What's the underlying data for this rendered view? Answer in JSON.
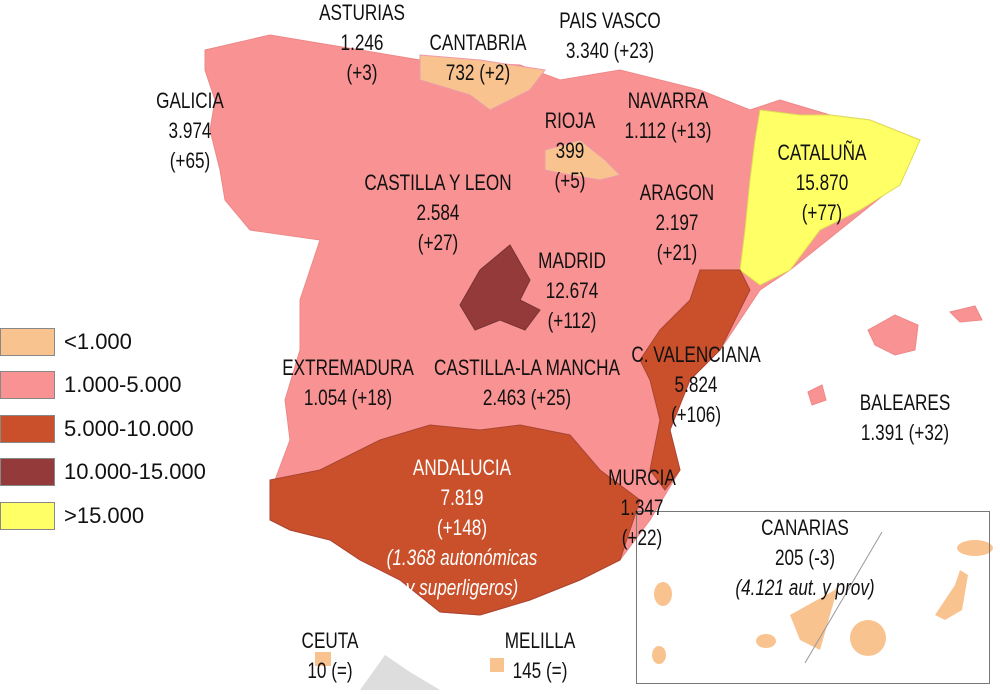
{
  "colors": {
    "lt1000": "#F9C38F",
    "r1000_5000": "#F99292",
    "r5000_10000": "#C9502A",
    "r10000_15000": "#953A3A",
    "gt15000": "#FFFF66"
  },
  "legend": [
    {
      "label": "<1.000",
      "color": "#F9C38F"
    },
    {
      "label": "1.000-5.000",
      "color": "#F99292"
    },
    {
      "label": "5.000-10.000",
      "color": "#C9502A"
    },
    {
      "label": "10.000-15.000",
      "color": "#953A3A"
    },
    {
      "label": ">15.000",
      "color": "#FFFF66"
    }
  ],
  "regions": {
    "asturias": {
      "name": "ASTURIAS",
      "value": "1.246",
      "change": "(+3)"
    },
    "cantabria": {
      "name": "CANTABRIA",
      "value": "732 (+2)"
    },
    "pais_vasco": {
      "name": "PAIS VASCO",
      "value": "3.340 (+23)"
    },
    "galicia": {
      "name": "GALICIA",
      "value": "3.974",
      "change": "(+65)"
    },
    "navarra": {
      "name": "NAVARRA",
      "value": "1.112 (+13)"
    },
    "rioja": {
      "name": "RIOJA",
      "value": "399",
      "change": "(+5)"
    },
    "cataluna": {
      "name": "CATALUÑA",
      "value": "15.870",
      "change": "(+77)"
    },
    "castilla_leon": {
      "name": "CASTILLA Y LEON",
      "value": "2.584",
      "change": "(+27)"
    },
    "aragon": {
      "name": "ARAGON",
      "value": "2.197",
      "change": "(+21)"
    },
    "madrid": {
      "name": "MADRID",
      "value": "12.674",
      "change": "(+112)"
    },
    "valencia": {
      "name": "C. VALENCIANA",
      "value": "5.824",
      "change": "(+106)"
    },
    "extremadura": {
      "name": "EXTREMADURA",
      "value": "1.054 (+18)"
    },
    "castilla_mancha": {
      "name": "CASTILLA-LA MANCHA",
      "value": "2.463 (+25)"
    },
    "baleares": {
      "name": "BALEARES",
      "value": "1.391 (+32)"
    },
    "andalucia": {
      "name": "ANDALUCIA",
      "value": "7.819",
      "change": "(+148)",
      "note1": "(1.368 autonómicas",
      "note2": "y superligeros)"
    },
    "murcia": {
      "name": "MURCIA",
      "value": "1.347",
      "change": "(+22)"
    },
    "canarias": {
      "name": "CANARIAS",
      "value": "205 (-3)",
      "note": "(4.121 aut. y prov)"
    },
    "ceuta": {
      "name": "CEUTA",
      "value": "10 (=)"
    },
    "melilla": {
      "name": "MELILLA",
      "value": "145 (=)"
    }
  }
}
